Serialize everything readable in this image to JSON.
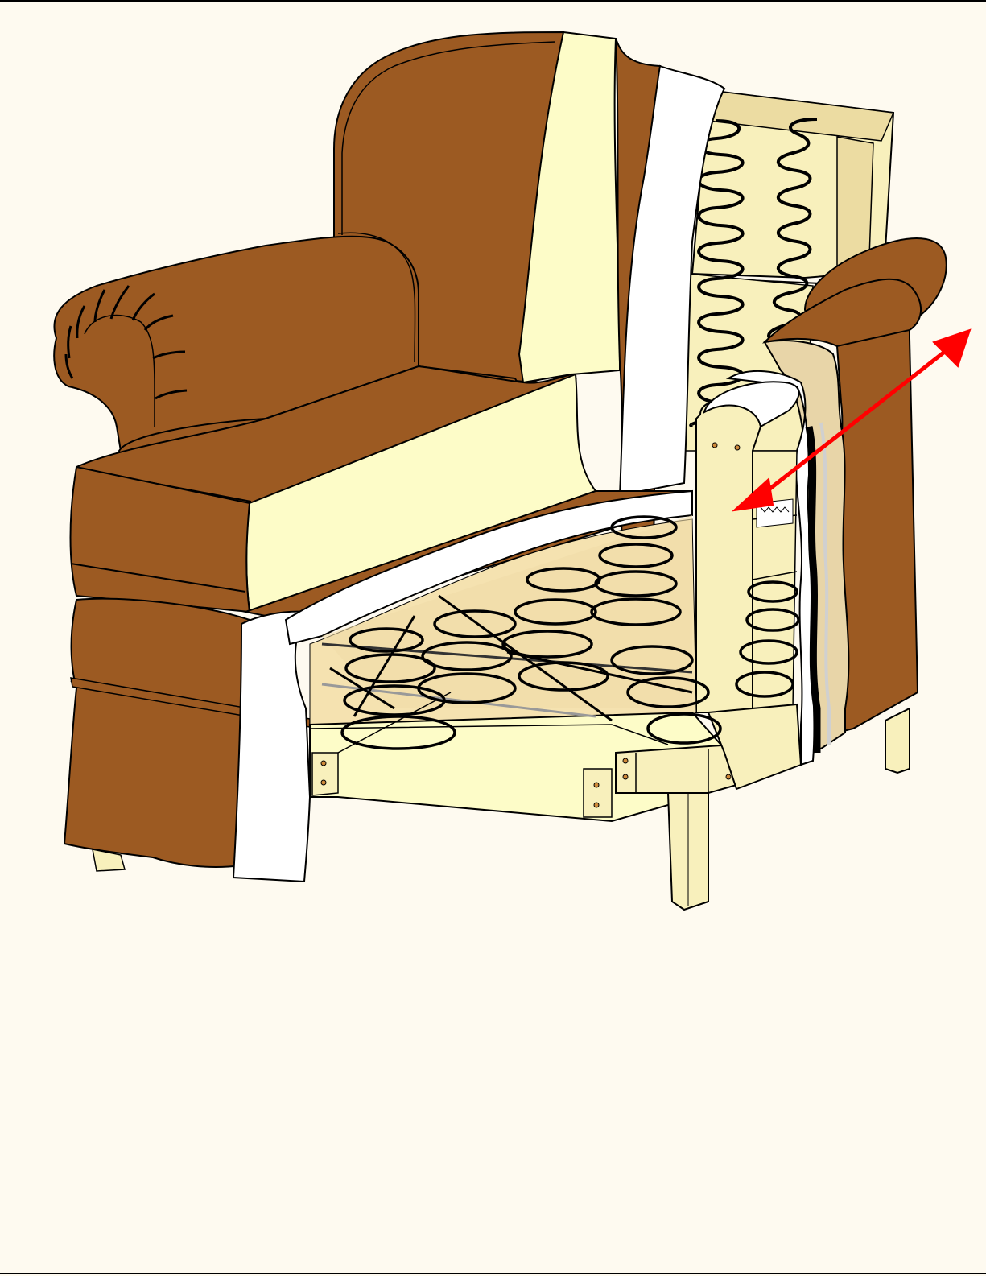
{
  "colors": {
    "page_background": "#fefaf0",
    "page_border": "#000000",
    "fabric": "#9c5a22",
    "padding_cream": "#fdfcc8",
    "padding_white": "#ffffff",
    "wood_frame": "#f8f0bc",
    "wood_shadow": "#ecdca2",
    "padding_tan": "#e8d5a8",
    "spring_wire": "#000000",
    "leader_arrow": "#ff0000"
  },
  "figure": {
    "subject": "upholstered-armchair-cutaway",
    "callouts": [
      {
        "name": "arm-panel-arrow",
        "style": "double-headed",
        "color": "#ff0000"
      }
    ]
  }
}
